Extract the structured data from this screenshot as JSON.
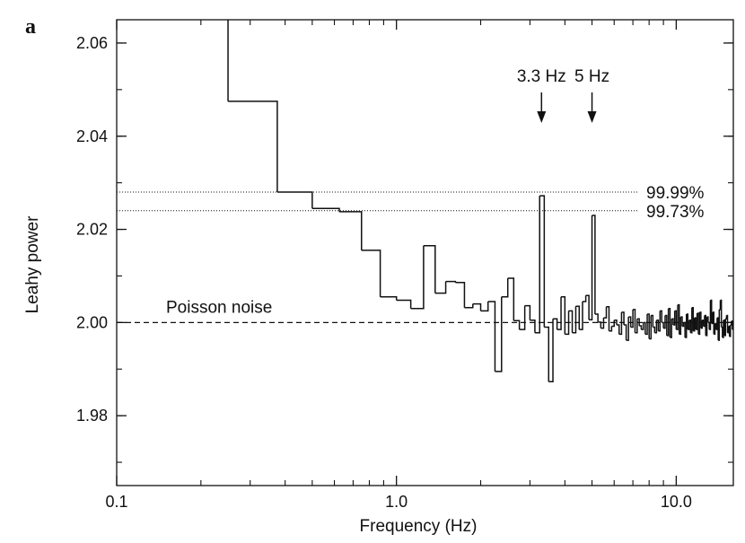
{
  "chart_data": {
    "type": "line",
    "panel_label": "a",
    "xlabel": "Frequency (Hz)",
    "ylabel": "Leahy power",
    "x_scale": "log",
    "xlim": [
      0.1,
      16
    ],
    "ylim": [
      1.965,
      2.065
    ],
    "x_ticks": [
      {
        "value": 0.1,
        "label": "0.1"
      },
      {
        "value": 1.0,
        "label": "1.0"
      },
      {
        "value": 10.0,
        "label": "10.0"
      }
    ],
    "y_ticks": [
      {
        "value": 1.98,
        "label": "1.98"
      },
      {
        "value": 2.0,
        "label": "2.00"
      },
      {
        "value": 2.02,
        "label": "2.02"
      },
      {
        "value": 2.04,
        "label": "2.04"
      },
      {
        "value": 2.06,
        "label": "2.06"
      }
    ],
    "reference_lines": [
      {
        "name": "Poisson noise",
        "y": 2.0,
        "style": "dashed",
        "label": "Poisson noise"
      },
      {
        "name": "99.99% significance",
        "y": 2.028,
        "style": "dotted",
        "label": "99.99%"
      },
      {
        "name": "99.73% significance",
        "y": 2.024,
        "style": "dotted",
        "label": "99.73%"
      }
    ],
    "annotations": [
      {
        "text": "3.3 Hz",
        "x": 3.3
      },
      {
        "text": "5 Hz",
        "x": 5.0
      }
    ],
    "series": [
      {
        "name": "Leahy power spectrum",
        "style": "step",
        "x_start": [
          0.25,
          0.375,
          0.5,
          0.625,
          0.75,
          0.875,
          1.0,
          1.125,
          1.25,
          1.375,
          1.5,
          1.625,
          1.75,
          1.875,
          2.0,
          2.125,
          2.25,
          2.375,
          2.5,
          2.625,
          2.75,
          2.875,
          3.0,
          3.125,
          3.25,
          3.375,
          3.5,
          3.625,
          3.75,
          3.875,
          4.0,
          4.125,
          4.25,
          4.375,
          4.5,
          4.625,
          4.75,
          4.875,
          5.0,
          5.125,
          5.25,
          5.375,
          5.5,
          5.625,
          5.75,
          5.875,
          6.0,
          6.125,
          6.25,
          6.375,
          6.5,
          6.625,
          6.75,
          6.875,
          7.0,
          7.125,
          7.25,
          7.375,
          7.5,
          7.625,
          7.75,
          7.875,
          8.0,
          8.125,
          8.25,
          8.375,
          8.5,
          8.625,
          8.75,
          8.875,
          9.0,
          9.125,
          9.25,
          9.375,
          9.5,
          9.625,
          9.75,
          9.875,
          10.0,
          10.125,
          10.25,
          10.375,
          10.5,
          10.625,
          10.75,
          10.875,
          11.0,
          11.125,
          11.25,
          11.375,
          11.5,
          11.625,
          11.75,
          11.875,
          12.0,
          12.125,
          12.25,
          12.375,
          12.5,
          12.625,
          12.75,
          12.875,
          13.0,
          13.125,
          13.25,
          13.375,
          13.5,
          13.625,
          13.75,
          13.875,
          14.0,
          14.125,
          14.25,
          14.375,
          14.5,
          14.625,
          14.75,
          14.875,
          15.0,
          15.125,
          15.25,
          15.375,
          15.5,
          15.625,
          15.75,
          15.875
        ],
        "values": [
          2.0475,
          2.028,
          2.0245,
          2.0238,
          2.0155,
          2.0055,
          2.0048,
          2.003,
          2.0165,
          2.0063,
          2.0088,
          2.0086,
          2.0032,
          2.004,
          2.0025,
          2.0045,
          1.9895,
          2.0055,
          2.0095,
          2.0004,
          1.9985,
          2.0036,
          2.0005,
          1.9978,
          2.0272,
          1.999,
          1.9873,
          2.0008,
          1.9985,
          2.0055,
          1.9975,
          2.0025,
          1.9978,
          2.0035,
          1.9985,
          2.0045,
          2.0058,
          2.0006,
          2.023,
          2.0018,
          2.0001,
          1.9988,
          2.001,
          2.0034,
          1.9982,
          1.9992,
          2.0005,
          1.9995,
          1.9975,
          2.0022,
          1.9995,
          1.9962,
          2.0012,
          1.999,
          2.0028,
          1.9978,
          2.0008,
          1.9993,
          1.9985,
          2.0,
          1.9975,
          2.0018,
          1.9965,
          2.0015,
          1.999,
          1.9978,
          2.0005,
          1.9982,
          2.0025,
          2.0,
          1.9988,
          2.0015,
          1.9972,
          2.003,
          1.9968,
          2.0008,
          1.9995,
          2.0025,
          1.9985,
          2.0038,
          1.9975,
          2.0012,
          1.9992,
          2.0,
          1.9968,
          2.0018,
          1.9985,
          2.0005,
          1.9978,
          2.0032,
          1.9982,
          2.001,
          1.9985,
          2.002,
          1.9975,
          2.0022,
          1.9988,
          2.0005,
          1.9992,
          2.0015,
          1.9972,
          2.0012,
          2.0,
          1.9985,
          2.0048,
          1.9998,
          2.0022,
          1.9975,
          1.9998,
          1.9985,
          2.001,
          1.9962,
          2.0028,
          2.0048,
          1.999,
          1.9968,
          2.0005,
          1.9972,
          2.0008,
          2.0015,
          1.9978,
          1.9992,
          1.997,
          1.9995,
          2.0003,
          1.9985
        ]
      }
    ]
  }
}
